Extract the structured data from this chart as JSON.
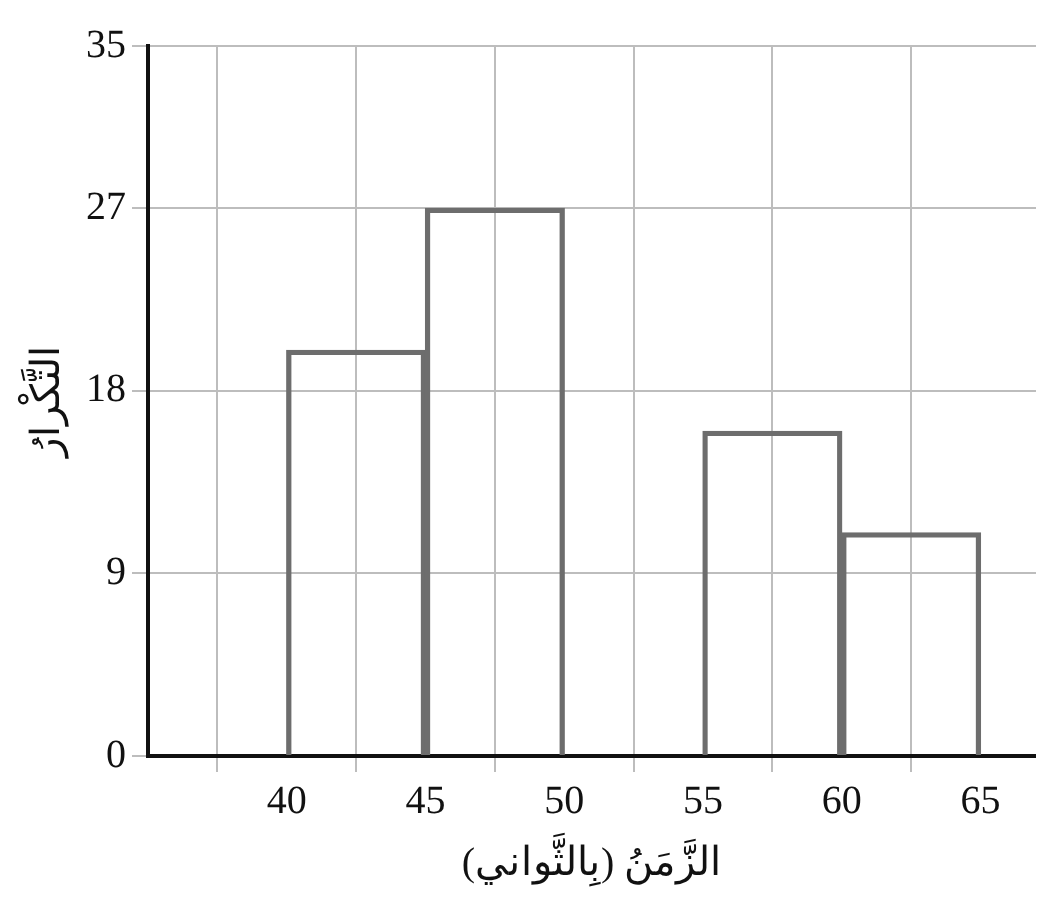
{
  "chart_data": {
    "type": "histogram",
    "xlabel": "الزَّمَنُ (بِالثَّواني)",
    "ylabel": "التَّكْرارُ",
    "bins": [
      40,
      45,
      50,
      55,
      60,
      65
    ],
    "values": [
      20,
      27,
      0,
      16,
      11
    ],
    "color": "#6d6d6d",
    "xlim": [
      35,
      67
    ],
    "xticks": [
      40,
      45,
      50,
      55,
      60,
      65
    ],
    "ylim": [
      0,
      35
    ],
    "yticks": [
      0,
      9,
      18,
      27,
      35
    ],
    "grid": true
  }
}
